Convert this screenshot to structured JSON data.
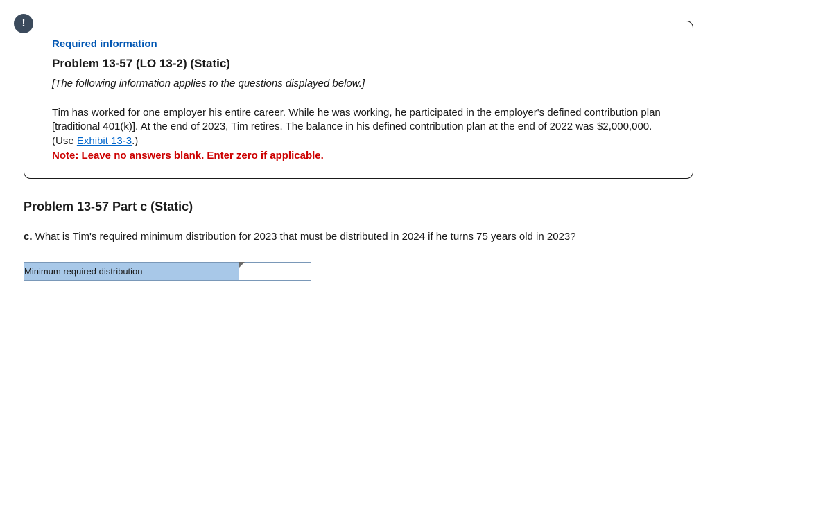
{
  "icon": {
    "label": "!"
  },
  "infoBox": {
    "requiredInfo": "Required information",
    "problemTitle": "Problem 13-57 (LO 13-2) (Static)",
    "appliesNote": "[The following information applies to the questions displayed below.]",
    "bodyPart1": "Tim has worked for one employer his entire career. While he was working, he participated in the employer's defined contribution plan [traditional 401(k)]. At the end of 2023, Tim retires. The balance in his defined contribution plan at the end of 2022 was $2,000,000. (Use ",
    "exhibitLink": "Exhibit 13-3",
    "bodyPart2": ".)",
    "noteRed": "Note: Leave no answers blank. Enter zero if applicable."
  },
  "part": {
    "title": "Problem 13-57 Part c (Static)",
    "questionLetter": "c.",
    "questionText": " What is Tim's required minimum distribution for 2023 that must be distributed in 2024 if he turns 75 years old in 2023?"
  },
  "answerTable": {
    "label": "Minimum required distribution",
    "value": ""
  },
  "colors": {
    "iconBg": "#3b4a5c",
    "reqInfo": "#0056b3",
    "link": "#0066cc",
    "noteRed": "#cc0000",
    "cellBg": "#a8c8e8",
    "cellBorder": "#7a98b8"
  }
}
